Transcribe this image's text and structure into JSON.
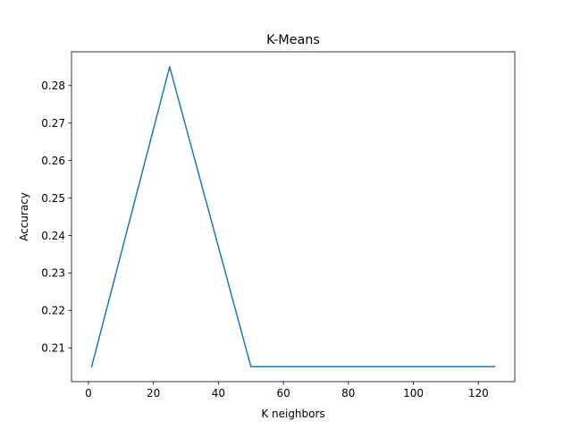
{
  "chart_data": {
    "type": "line",
    "title": "K-Means",
    "xlabel": "K neighbors",
    "ylabel": "Accuracy",
    "xlim": [
      -5.2,
      131.2
    ],
    "ylim": [
      0.201,
      0.289
    ],
    "xticks": [
      0,
      20,
      40,
      60,
      80,
      100,
      120
    ],
    "yticks": [
      0.21,
      0.22,
      0.23,
      0.24,
      0.25,
      0.26,
      0.27,
      0.28
    ],
    "ytick_labels": [
      "0.21",
      "0.22",
      "0.23",
      "0.24",
      "0.25",
      "0.26",
      "0.27",
      "0.28"
    ],
    "grid": false,
    "series": [
      {
        "color": "#1f77b4",
        "x": [
          1,
          25,
          50,
          75,
          100,
          125
        ],
        "y": [
          0.205,
          0.285,
          0.205,
          0.205,
          0.205,
          0.205
        ]
      }
    ]
  }
}
